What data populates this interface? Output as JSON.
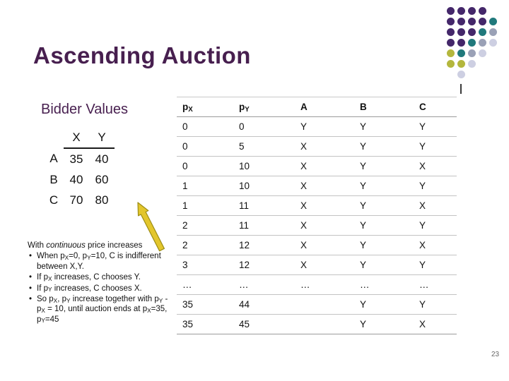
{
  "slide": {
    "title": "Ascending Auction",
    "page_number": "23"
  },
  "decor": {
    "dot_colors": {
      "p": "#44276a",
      "t": "#20797c",
      "g": "#9aa1b6",
      "y": "#b4b73d",
      "l": "#cdcfe2"
    },
    "dot_grid": [
      "pppp.",
      "ppppt",
      "ppptg",
      "pptgl",
      "ytgl.",
      "yyl..",
      ".l..."
    ],
    "arrow_fill": "#e3c62c",
    "arrow_stroke": "#9d8d15"
  },
  "bidder_values": {
    "heading": "Bidder Values",
    "columns": [
      "X",
      "Y"
    ],
    "rows": [
      {
        "name": "A",
        "x": "35",
        "y": "40"
      },
      {
        "name": "B",
        "x": "40",
        "y": "60"
      },
      {
        "name": "C",
        "x": "70",
        "y": "80"
      }
    ]
  },
  "notes": {
    "intro": [
      [
        "t",
        "With "
      ],
      [
        "i",
        "continuous"
      ],
      [
        "t",
        " price increases"
      ]
    ],
    "bullets": [
      [
        [
          "t",
          "When p"
        ],
        [
          "sub",
          "X"
        ],
        [
          "t",
          "=0, p"
        ],
        [
          "sub",
          "Y"
        ],
        [
          "t",
          "=10, C is indifferent between X,Y."
        ]
      ],
      [
        [
          "t",
          "If p"
        ],
        [
          "sub",
          "X"
        ],
        [
          "t",
          " increases, C chooses Y."
        ]
      ],
      [
        [
          "t",
          "If p"
        ],
        [
          "sub",
          "Y"
        ],
        [
          "t",
          " increases, C chooses X."
        ]
      ],
      [
        [
          "t",
          "So p"
        ],
        [
          "sub",
          "X"
        ],
        [
          "t",
          ", p"
        ],
        [
          "sub",
          "Y"
        ],
        [
          "t",
          " increase together with p"
        ],
        [
          "sub",
          "Y"
        ],
        [
          "t",
          " - p"
        ],
        [
          "sub",
          "X"
        ],
        [
          "t",
          " = 10, until auction ends at p"
        ],
        [
          "sub",
          "X"
        ],
        [
          "t",
          "=35, p"
        ],
        [
          "sub",
          "Y"
        ],
        [
          "t",
          "=45"
        ]
      ]
    ]
  },
  "price_table": {
    "headers": [
      [
        [
          "t",
          "p"
        ],
        [
          "sub",
          "X"
        ]
      ],
      [
        [
          "t",
          "p"
        ],
        [
          "sub",
          "Y"
        ]
      ],
      [
        [
          "t",
          "A"
        ]
      ],
      [
        [
          "t",
          "B"
        ]
      ],
      [
        [
          "t",
          "C"
        ]
      ]
    ],
    "rows": [
      [
        "0",
        "0",
        "Y",
        "Y",
        "Y"
      ],
      [
        "0",
        "5",
        "X",
        "Y",
        "Y"
      ],
      [
        "0",
        "10",
        "X",
        "Y",
        "X"
      ],
      [
        "1",
        "10",
        "X",
        "Y",
        "Y"
      ],
      [
        "1",
        "11",
        "X",
        "Y",
        "X"
      ],
      [
        "2",
        "11",
        "X",
        "Y",
        "Y"
      ],
      [
        "2",
        "12",
        "X",
        "Y",
        "X"
      ],
      [
        "3",
        "12",
        "X",
        "Y",
        "Y"
      ],
      [
        "…",
        "…",
        "…",
        "…",
        "…"
      ],
      [
        "35",
        "44",
        "",
        "Y",
        "Y"
      ],
      [
        "35",
        "45",
        "",
        "Y",
        "X"
      ]
    ]
  }
}
